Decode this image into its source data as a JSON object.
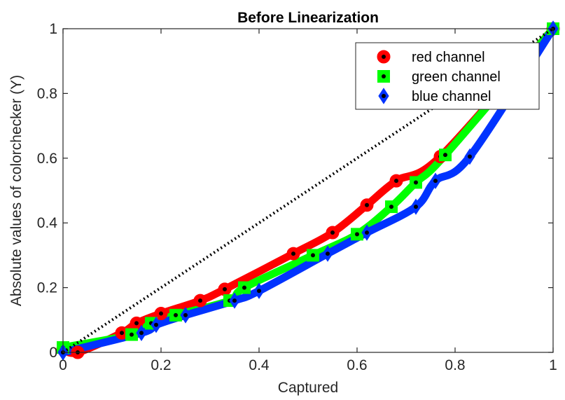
{
  "chart_data": {
    "type": "line",
    "title": "Before Linearization",
    "xlabel": "Captured",
    "ylabel": "Absolute values of colorchecker (Y)",
    "xlim": [
      0,
      1
    ],
    "ylim": [
      0,
      1
    ],
    "xticks": [
      "0",
      "0.2",
      "0.4",
      "0.6",
      "0.8",
      "1"
    ],
    "yticks": [
      "0",
      "0.2",
      "0.4",
      "0.6",
      "0.8",
      "1"
    ],
    "grid": false,
    "legend_position": "top-right",
    "reference_line": {
      "style": "dotted",
      "color": "#000000",
      "x": [
        0,
        1
      ],
      "y": [
        0,
        1
      ]
    },
    "series": [
      {
        "name": "red channel",
        "color": "#ff0000",
        "marker": "circle",
        "x": [
          0.0,
          0.03,
          0.12,
          0.15,
          0.2,
          0.28,
          0.33,
          0.47,
          0.55,
          0.62,
          0.68,
          0.77,
          1.0
        ],
        "y": [
          0.01,
          0.0,
          0.06,
          0.09,
          0.12,
          0.16,
          0.195,
          0.305,
          0.37,
          0.455,
          0.53,
          0.605,
          1.0
        ]
      },
      {
        "name": "green channel",
        "color": "#00ff00",
        "marker": "square",
        "x": [
          0.0,
          0.14,
          0.18,
          0.23,
          0.34,
          0.37,
          0.51,
          0.6,
          0.67,
          0.72,
          0.78,
          1.0
        ],
        "y": [
          0.015,
          0.055,
          0.09,
          0.115,
          0.16,
          0.2,
          0.3,
          0.365,
          0.45,
          0.525,
          0.61,
          1.0
        ]
      },
      {
        "name": "blue channel",
        "color": "#0033ff",
        "marker": "diamond",
        "x": [
          0.0,
          0.16,
          0.19,
          0.25,
          0.35,
          0.4,
          0.54,
          0.62,
          0.72,
          0.76,
          0.83,
          1.0
        ],
        "y": [
          0.0,
          0.06,
          0.085,
          0.115,
          0.16,
          0.19,
          0.305,
          0.37,
          0.45,
          0.53,
          0.605,
          1.0
        ]
      }
    ]
  }
}
